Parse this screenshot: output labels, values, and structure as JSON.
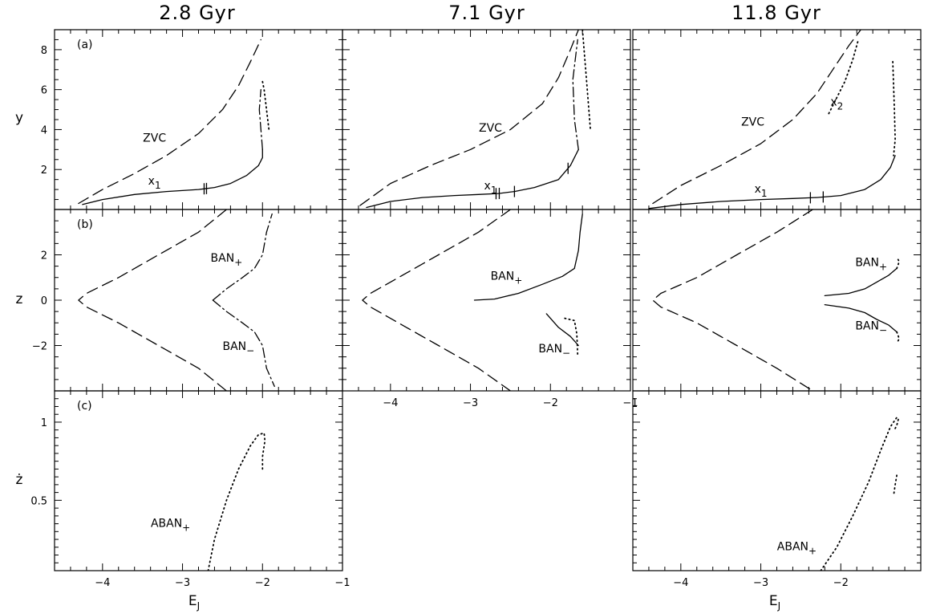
{
  "figure": {
    "column_titles": [
      "2.8 Gyr",
      "7.1 Gyr",
      "11.8 Gyr"
    ],
    "row_labels": [
      "(a)",
      "(b)",
      "(c)"
    ],
    "ylabels": [
      "y",
      "z",
      "ż"
    ],
    "xlabel": "E",
    "xlabel_sub": "J",
    "xticks": [
      "−4",
      "−3",
      "−2",
      "−1"
    ],
    "yticks": {
      "a": [
        "2",
        "4",
        "6",
        "8"
      ],
      "b": [
        "−2",
        "0",
        "2"
      ],
      "c": [
        "0.5",
        "1"
      ]
    }
  },
  "chart_data": [
    {
      "type": "line",
      "panel": "a",
      "column": "2.8 Gyr",
      "xlabel": "",
      "ylabel": "y",
      "xlim": [
        -4.6,
        -1.0
      ],
      "ylim": [
        0,
        9
      ],
      "series": [
        {
          "name": "ZVC",
          "style": "dashed",
          "x": [
            -4.3,
            -4.0,
            -3.6,
            -3.2,
            -2.8,
            -2.5,
            -2.3,
            -2.15,
            -2.02
          ],
          "y": [
            0.3,
            1.0,
            1.8,
            2.7,
            3.8,
            5.0,
            6.2,
            7.4,
            8.5
          ]
        },
        {
          "name": "x1",
          "style": "solid",
          "x": [
            -4.25,
            -4.0,
            -3.6,
            -3.2,
            -2.8,
            -2.6,
            -2.4,
            -2.2,
            -2.05,
            -2.0,
            -2.0
          ],
          "y": [
            0.25,
            0.5,
            0.75,
            0.9,
            1.0,
            1.1,
            1.3,
            1.7,
            2.2,
            2.6,
            3.0
          ]
        },
        {
          "style": "dash-dot",
          "x": [
            -2.0,
            -2.02,
            -2.04,
            -2.02
          ],
          "y": [
            3.0,
            4.0,
            5.0,
            6.0
          ]
        },
        {
          "style": "dotted",
          "x": [
            -2.0,
            -1.98,
            -1.95,
            -1.92
          ],
          "y": [
            6.4,
            6.0,
            5.0,
            4.0
          ]
        }
      ],
      "annotations": [
        {
          "text": "ZVC",
          "x": -3.35,
          "y": 3.4
        },
        {
          "text": "x",
          "sub": "1",
          "x": -3.35,
          "y": 1.25
        }
      ],
      "markers_x": [
        -2.73,
        -2.7
      ]
    },
    {
      "type": "line",
      "panel": "a",
      "column": "7.1 Gyr",
      "xlabel": "",
      "ylabel": "y",
      "xlim": [
        -4.6,
        -1.0
      ],
      "ylim": [
        0,
        9
      ],
      "series": [
        {
          "name": "ZVC",
          "style": "dashed",
          "x": [
            -4.38,
            -4.0,
            -3.5,
            -3.0,
            -2.5,
            -2.1,
            -1.9,
            -1.75,
            -1.65
          ],
          "y": [
            0.2,
            1.3,
            2.2,
            3.0,
            4.0,
            5.3,
            6.6,
            8.0,
            9.0
          ]
        },
        {
          "name": "x1",
          "style": "solid",
          "x": [
            -4.3,
            -4.0,
            -3.6,
            -3.2,
            -2.9,
            -2.65,
            -2.45,
            -2.2,
            -1.9,
            -1.75,
            -1.65
          ],
          "y": [
            0.1,
            0.4,
            0.6,
            0.7,
            0.75,
            0.8,
            0.9,
            1.1,
            1.5,
            2.2,
            3.0
          ]
        },
        {
          "style": "dash-dot",
          "x": [
            -1.65,
            -1.7,
            -1.72,
            -1.66
          ],
          "y": [
            3.0,
            4.5,
            6.5,
            8.5
          ]
        },
        {
          "style": "dotted",
          "x": [
            -1.6,
            -1.55,
            -1.5
          ],
          "y": [
            9.0,
            6.5,
            4.0
          ]
        }
      ],
      "annotations": [
        {
          "text": "ZVC",
          "x": -2.75,
          "y": 3.9
        },
        {
          "text": "x",
          "sub": "1",
          "x": -2.75,
          "y": 1.0
        }
      ],
      "markers_x": [
        -2.68,
        -2.64,
        -2.45,
        -1.78
      ]
    },
    {
      "type": "line",
      "panel": "a",
      "column": "11.8 Gyr",
      "xlabel": "",
      "ylabel": "y",
      "xlim": [
        -4.6,
        -1.0
      ],
      "ylim": [
        0,
        9
      ],
      "series": [
        {
          "name": "ZVC",
          "style": "dashed",
          "x": [
            -4.35,
            -4.0,
            -3.5,
            -3.0,
            -2.6,
            -2.3,
            -2.1,
            -1.9,
            -1.75
          ],
          "y": [
            0.3,
            1.2,
            2.2,
            3.3,
            4.5,
            5.8,
            7.0,
            8.2,
            9.0
          ]
        },
        {
          "name": "x1",
          "style": "solid",
          "x": [
            -4.4,
            -4.0,
            -3.5,
            -3.0,
            -2.6,
            -2.3,
            -2.0,
            -1.7,
            -1.5,
            -1.38,
            -1.32
          ],
          "y": [
            0.05,
            0.25,
            0.4,
            0.5,
            0.55,
            0.6,
            0.7,
            1.0,
            1.5,
            2.1,
            2.7
          ]
        },
        {
          "name": "x2",
          "style": "dotted",
          "x": [
            -2.15,
            -2.05,
            -1.95,
            -1.85,
            -1.78
          ],
          "y": [
            4.8,
            5.6,
            6.4,
            7.5,
            8.5
          ]
        },
        {
          "style": "dotted",
          "x": [
            -1.35,
            -1.33,
            -1.32,
            -1.34
          ],
          "y": [
            7.4,
            5.0,
            3.5,
            2.7
          ]
        }
      ],
      "annotations": [
        {
          "text": "ZVC",
          "x": -3.1,
          "y": 4.2
        },
        {
          "text": "x",
          "sub": "1",
          "x": -3.0,
          "y": 0.85
        },
        {
          "text": "x",
          "sub": "2",
          "x": -2.05,
          "y": 5.2
        }
      ],
      "markers_x": [
        -2.38,
        -2.22
      ]
    },
    {
      "type": "line",
      "panel": "b",
      "column": "2.8 Gyr",
      "xlabel": "",
      "ylabel": "z",
      "xlim": [
        -4.6,
        -1.0
      ],
      "ylim": [
        -4,
        4
      ],
      "series": [
        {
          "name": "ZVC",
          "style": "dashed",
          "x": [
            -2.45,
            -2.8,
            -3.3,
            -3.8,
            -4.2,
            -4.3,
            -4.2,
            -3.8,
            -3.3,
            -2.8,
            -2.45
          ],
          "y": [
            4.0,
            3.0,
            2.0,
            1.0,
            0.3,
            0.0,
            -0.3,
            -1.0,
            -2.0,
            -3.0,
            -4.0
          ]
        },
        {
          "name": "BAN+",
          "style": "dash-dot",
          "x": [
            -2.62,
            -2.45,
            -2.25,
            -2.1,
            -2.0,
            -1.95,
            -1.88
          ],
          "y": [
            0.0,
            0.5,
            1.0,
            1.4,
            2.0,
            3.0,
            3.8
          ]
        },
        {
          "name": "BAN−",
          "style": "dash-dot",
          "x": [
            -2.62,
            -2.45,
            -2.25,
            -2.1,
            -2.0,
            -1.95,
            -1.85
          ],
          "y": [
            0.0,
            -0.5,
            -1.0,
            -1.4,
            -2.0,
            -3.0,
            -3.8
          ]
        }
      ],
      "annotations": [
        {
          "text": "BAN",
          "sub": "+",
          "x": -2.45,
          "y": 1.7
        },
        {
          "text": "BAN",
          "sub": "−",
          "x": -2.3,
          "y": -2.2
        }
      ]
    },
    {
      "type": "line",
      "panel": "b",
      "column": "7.1 Gyr",
      "xlabel": "",
      "ylabel": "z",
      "xlim": [
        -4.6,
        -1.0
      ],
      "ylim": [
        -4,
        4
      ],
      "series": [
        {
          "name": "ZVC",
          "style": "dashed",
          "x": [
            -2.5,
            -2.9,
            -3.4,
            -3.9,
            -4.25,
            -4.35,
            -4.25,
            -3.9,
            -3.4,
            -2.9,
            -2.5
          ],
          "y": [
            4.0,
            3.0,
            2.0,
            1.0,
            0.3,
            0.0,
            -0.3,
            -1.0,
            -2.0,
            -3.0,
            -4.0
          ]
        },
        {
          "name": "BAN+",
          "style": "solid",
          "x": [
            -2.95,
            -2.7,
            -2.4,
            -2.1,
            -1.85,
            -1.7,
            -1.65,
            -1.63,
            -1.6
          ],
          "y": [
            0.0,
            0.05,
            0.3,
            0.7,
            1.05,
            1.4,
            2.2,
            3.0,
            3.8
          ]
        },
        {
          "name": "BAN−",
          "style": "solid",
          "x": [
            -2.05,
            -1.9,
            -1.75,
            -1.65
          ],
          "y": [
            -0.6,
            -1.2,
            -1.6,
            -2.0
          ]
        },
        {
          "style": "dotted",
          "x": [
            -1.82,
            -1.7,
            -1.67,
            -1.66
          ],
          "y": [
            -0.8,
            -0.9,
            -1.5,
            -2.4
          ]
        }
      ],
      "annotations": [
        {
          "text": "BAN",
          "sub": "+",
          "x": -2.55,
          "y": 0.9
        },
        {
          "text": "BAN",
          "sub": "−",
          "x": -1.95,
          "y": -2.3
        }
      ]
    },
    {
      "type": "line",
      "panel": "b",
      "column": "11.8 Gyr",
      "xlabel": "",
      "ylabel": "z",
      "xlim": [
        -4.6,
        -1.0
      ],
      "ylim": [
        -4,
        4
      ],
      "series": [
        {
          "name": "ZVC",
          "style": "dashed",
          "x": [
            -2.35,
            -2.8,
            -3.3,
            -3.8,
            -4.25,
            -4.35,
            -4.25,
            -3.8,
            -3.3,
            -2.8,
            -2.35
          ],
          "y": [
            4.0,
            3.0,
            2.0,
            1.0,
            0.3,
            0.0,
            -0.3,
            -1.0,
            -2.0,
            -3.0,
            -4.0
          ]
        },
        {
          "name": "BAN+",
          "style": "solid",
          "x": [
            -2.2,
            -1.9,
            -1.7,
            -1.55,
            -1.4,
            -1.3
          ],
          "y": [
            0.2,
            0.3,
            0.5,
            0.8,
            1.1,
            1.4
          ]
        },
        {
          "name": "BAN−",
          "style": "solid",
          "x": [
            -2.2,
            -1.9,
            -1.7,
            -1.55,
            -1.4,
            -1.3
          ],
          "y": [
            -0.2,
            -0.35,
            -0.55,
            -0.85,
            -1.1,
            -1.4
          ]
        },
        {
          "style": "dotted",
          "x": [
            -1.3,
            -1.27,
            -1.3
          ],
          "y": [
            1.4,
            1.7,
            1.9
          ]
        },
        {
          "style": "dotted",
          "x": [
            -1.3,
            -1.27,
            -1.3
          ],
          "y": [
            -1.4,
            -1.7,
            -1.9
          ]
        }
      ],
      "annotations": [
        {
          "text": "BAN",
          "sub": "+",
          "x": -1.62,
          "y": 1.5
        },
        {
          "text": "BAN",
          "sub": "−",
          "x": -1.62,
          "y": -1.3
        }
      ]
    },
    {
      "type": "line",
      "panel": "c",
      "column": "2.8 Gyr",
      "xlabel": "E_J",
      "ylabel": "ż",
      "xlim": [
        -4.6,
        -1.0
      ],
      "ylim": [
        0.05,
        1.2
      ],
      "series": [
        {
          "name": "ABAN+",
          "style": "dotted",
          "x": [
            -2.68,
            -2.6,
            -2.45,
            -2.3,
            -2.15,
            -2.05,
            -1.98,
            -1.97,
            -2.0,
            -2.0
          ],
          "y": [
            0.05,
            0.25,
            0.5,
            0.7,
            0.85,
            0.92,
            0.93,
            0.88,
            0.78,
            0.68
          ]
        }
      ],
      "annotations": [
        {
          "text": "ABAN",
          "sub": "+",
          "x": -3.15,
          "y": 0.33
        }
      ]
    },
    {
      "type": "line",
      "panel": "c",
      "column": "11.8 Gyr",
      "xlabel": "E_J",
      "ylabel": "ż",
      "xlim": [
        -4.6,
        -1.0
      ],
      "ylim": [
        0.05,
        1.2
      ],
      "series": [
        {
          "name": "ABAN+",
          "style": "dotted",
          "x": [
            -2.25,
            -2.05,
            -1.85,
            -1.65,
            -1.5,
            -1.38,
            -1.3,
            -1.28,
            -1.3,
            -1.33
          ],
          "y": [
            0.05,
            0.2,
            0.4,
            0.62,
            0.82,
            0.97,
            1.03,
            1.02,
            0.98,
            0.95
          ]
        },
        {
          "style": "dotted",
          "x": [
            -1.3,
            -1.32,
            -1.34
          ],
          "y": [
            0.66,
            0.6,
            0.53
          ]
        }
      ],
      "annotations": [
        {
          "text": "ABAN",
          "sub": "+",
          "x": -2.55,
          "y": 0.18
        }
      ]
    }
  ]
}
